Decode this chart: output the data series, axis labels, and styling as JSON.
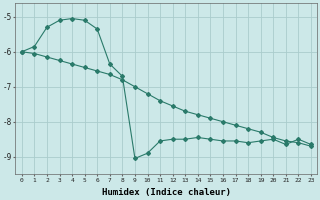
{
  "xlabel": "Humidex (Indice chaleur)",
  "background_color": "#cce8e8",
  "grid_color": "#aacccc",
  "line_color": "#2a7a6a",
  "x_ticks": [
    0,
    1,
    2,
    3,
    4,
    5,
    6,
    7,
    8,
    9,
    10,
    11,
    12,
    13,
    14,
    15,
    16,
    17,
    18,
    19,
    20,
    21,
    22,
    23
  ],
  "x_tick_labels": [
    "0",
    "1",
    "2",
    "3",
    "4",
    "5",
    "6",
    "7",
    "8",
    "9",
    "10",
    "11",
    "12",
    "13",
    "14",
    "15",
    "16",
    "17",
    "18",
    "19",
    "20",
    "21",
    "22",
    "23"
  ],
  "y_ticks": [
    -5,
    -6,
    -7,
    -8,
    -9
  ],
  "ylim": [
    -9.5,
    -4.6
  ],
  "xlim": [
    -0.5,
    23.5
  ],
  "line1_x": [
    0,
    1,
    2,
    3,
    4,
    5,
    6,
    7,
    8,
    9,
    10,
    11,
    12,
    13,
    14,
    15,
    16,
    17,
    18,
    19,
    20,
    21,
    22,
    23
  ],
  "line1_y": [
    -6.0,
    -5.85,
    -5.3,
    -5.1,
    -5.05,
    -5.1,
    -5.35,
    -6.35,
    -6.7,
    -9.05,
    -8.9,
    -8.55,
    -8.5,
    -8.5,
    -8.45,
    -8.5,
    -8.55,
    -8.55,
    -8.6,
    -8.55,
    -8.5,
    -8.65,
    -8.5,
    -8.65
  ],
  "line2_x": [
    0,
    1,
    2,
    3,
    4,
    5,
    6,
    7,
    8,
    9,
    10,
    11,
    12,
    13,
    14,
    15,
    16,
    17,
    18,
    19,
    20,
    21,
    22,
    23
  ],
  "line2_y": [
    -6.0,
    -6.05,
    -6.15,
    -6.25,
    -6.35,
    -6.45,
    -6.55,
    -6.65,
    -6.8,
    -7.0,
    -7.2,
    -7.4,
    -7.55,
    -7.7,
    -7.8,
    -7.9,
    -8.0,
    -8.1,
    -8.2,
    -8.3,
    -8.45,
    -8.55,
    -8.6,
    -8.7
  ],
  "marker": "D",
  "markersize": 2.0,
  "linewidth": 0.8
}
